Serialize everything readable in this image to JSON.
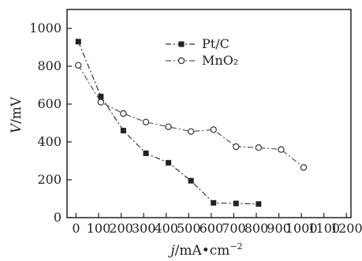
{
  "chart_data": {
    "type": "line",
    "xlabel_symbol": "j",
    "xlabel_unit": "/mA•cm",
    "xlabel_unit_exponent": "−2",
    "ylabel_symbol": "V",
    "ylabel_unit": "/mV",
    "xlim": [
      -40,
      1220
    ],
    "ylim": [
      0,
      1100
    ],
    "xticks": [
      0,
      100,
      200,
      300,
      400,
      500,
      600,
      700,
      800,
      900,
      1000,
      1100,
      1200
    ],
    "yticks": [
      0,
      200,
      400,
      600,
      800,
      1000
    ],
    "grid": false,
    "legend_position": "top-right",
    "series": [
      {
        "name": "Pt/C",
        "marker": "filled-square",
        "line_style": "dash-dot",
        "x": [
          10,
          110,
          210,
          310,
          410,
          510,
          610,
          710,
          810
        ],
        "y": [
          930,
          640,
          460,
          340,
          290,
          195,
          78,
          75,
          72
        ]
      },
      {
        "name": "MnO₂",
        "marker": "open-circle",
        "line_style": "dash-dot",
        "x": [
          10,
          110,
          210,
          310,
          410,
          510,
          610,
          710,
          810,
          910,
          1010
        ],
        "y": [
          805,
          610,
          550,
          505,
          480,
          455,
          465,
          375,
          370,
          360,
          265
        ]
      }
    ]
  }
}
